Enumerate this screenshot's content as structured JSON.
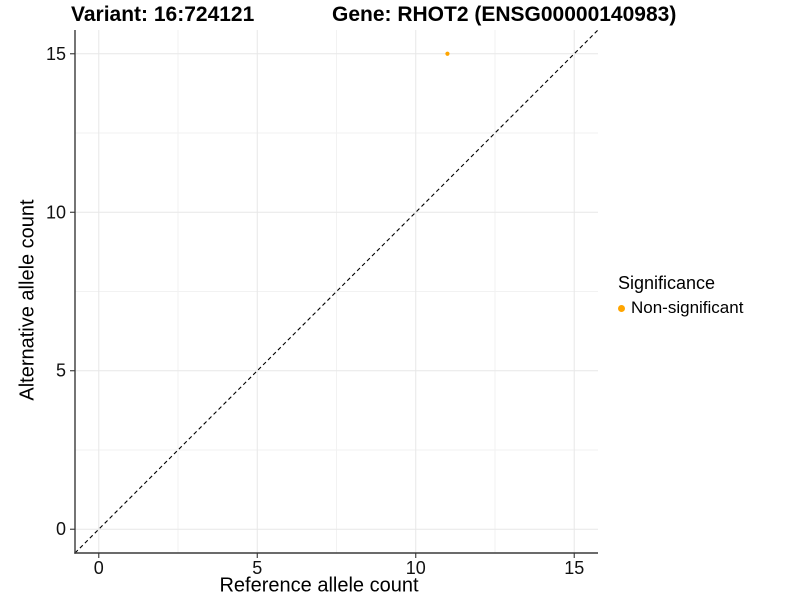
{
  "titles": {
    "variant": "Variant: 16:724121",
    "gene": "Gene: RHOT2 (ENSG00000140983)"
  },
  "chart_data": {
    "type": "scatter",
    "xlabel": "Reference allele count",
    "ylabel": "Alternative allele count",
    "xlim": [
      -0.75,
      15.75
    ],
    "ylim": [
      -0.75,
      15.75
    ],
    "xticks": [
      0,
      5,
      10,
      15
    ],
    "yticks": [
      0,
      5,
      10,
      15
    ],
    "xminor": [
      2.5,
      7.5,
      12.5
    ],
    "yminor": [
      2.5,
      7.5,
      12.5
    ],
    "grid": true,
    "points": [
      {
        "x": 11,
        "y": 15,
        "group": "Non-significant"
      }
    ],
    "identity_line": {
      "slope": 1,
      "intercept": 0,
      "style": "dashed",
      "color": "#000000"
    },
    "legend": {
      "title": "Significance",
      "position": "right",
      "entries": [
        {
          "label": "Non-significant",
          "color": "#FFA500"
        }
      ]
    },
    "colors": {
      "point": "#FFA500",
      "axis_line": "#3a3a3a",
      "tick": "#333333",
      "tick_label": "#111111",
      "grid_major": "#e7e7e7",
      "grid_minor": "#f2f2f2"
    }
  }
}
